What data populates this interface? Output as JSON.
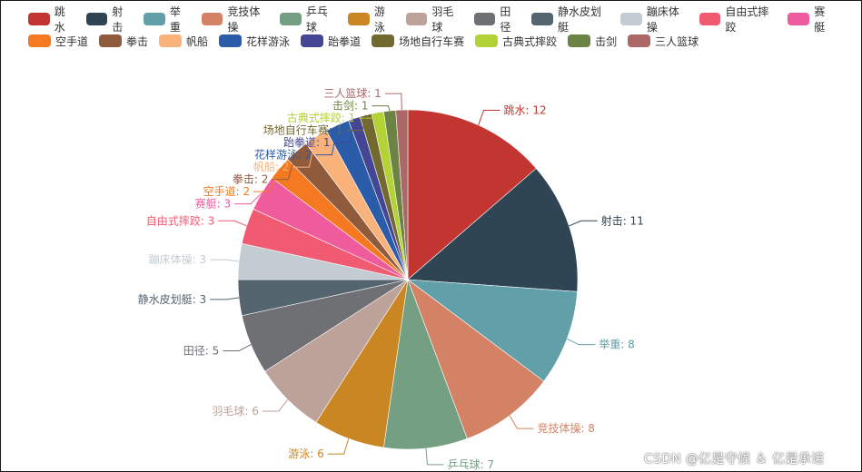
{
  "chart_data": {
    "type": "pie",
    "categories": [
      "跳水",
      "射击",
      "举重",
      "竞技体操",
      "乒乓球",
      "游泳",
      "羽毛球",
      "田径",
      "静水皮划艇",
      "蹦床体操",
      "自由式摔跤",
      "赛艇",
      "空手道",
      "拳击",
      "帆船",
      "花样游泳",
      "跆拳道",
      "场地自行车赛",
      "古典式摔跤",
      "击剑",
      "三人篮球"
    ],
    "values": [
      12,
      11,
      8,
      8,
      7,
      6,
      6,
      5,
      3,
      3,
      3,
      3,
      2,
      2,
      2,
      2,
      1,
      1,
      1,
      1,
      1
    ],
    "colors": [
      "#c23531",
      "#2f4554",
      "#61a0a8",
      "#d48265",
      "#749f83",
      "#ca8622",
      "#bda29a",
      "#6e7074",
      "#546570",
      "#c4ccd3",
      "#f05b72",
      "#ef5b9c",
      "#f47920",
      "#905a3d",
      "#fab27b",
      "#2a5caa",
      "#444693",
      "#726930",
      "#b2d235",
      "#6d8346",
      "#ac6767"
    ],
    "label_separator": ": "
  },
  "watermark": "CSDN @亿是守候 ＆ 亿是承诺"
}
